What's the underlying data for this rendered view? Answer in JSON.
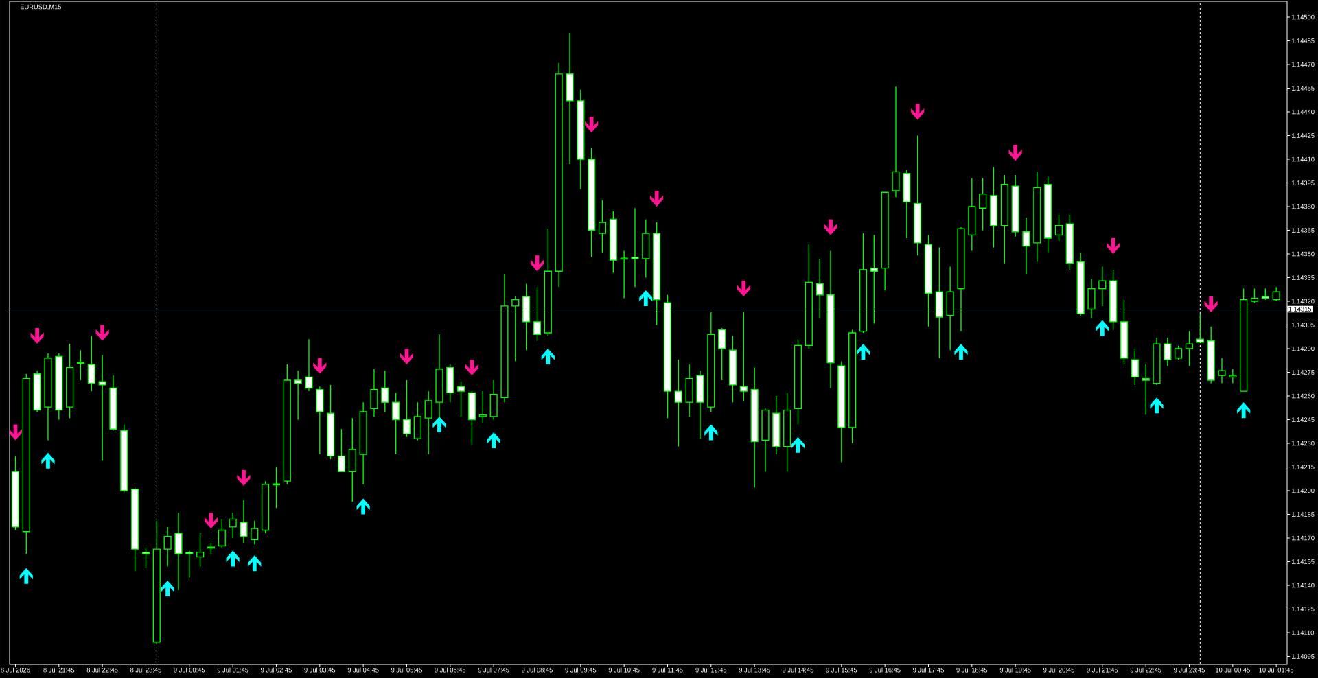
{
  "chart_data": {
    "type": "candlestick",
    "title": "EURUSD,M15",
    "color": "#00ff00",
    "x": [
      "2026-07-08T20:45",
      "2026-07-08T21:00",
      "2026-07-08T21:15",
      "2026-07-08T21:30",
      "2026-07-08T21:45",
      "2026-07-08T22:00",
      "2026-07-08T22:15",
      "2026-07-08T22:30",
      "2026-07-08T22:45",
      "2026-07-08T23:00",
      "2026-07-08T23:15",
      "2026-07-08T23:30",
      "2026-07-08T23:45",
      "2026-07-09T00:00",
      "2026-07-09T00:15",
      "2026-07-09T00:30",
      "2026-07-09T00:45",
      "2026-07-09T01:00",
      "2026-07-09T01:15",
      "2026-07-09T01:30",
      "2026-07-09T01:45",
      "2026-07-09T02:00",
      "2026-07-09T02:15",
      "2026-07-09T02:30",
      "2026-07-09T02:45",
      "2026-07-09T03:00",
      "2026-07-09T03:15",
      "2026-07-09T03:30",
      "2026-07-09T03:45",
      "2026-07-09T04:00",
      "2026-07-09T04:15",
      "2026-07-09T04:30",
      "2026-07-09T04:45",
      "2026-07-09T05:00",
      "2026-07-09T05:15",
      "2026-07-09T05:30",
      "2026-07-09T05:45",
      "2026-07-09T06:00",
      "2026-07-09T06:15",
      "2026-07-09T06:30",
      "2026-07-09T06:45",
      "2026-07-09T07:00",
      "2026-07-09T07:15",
      "2026-07-09T07:30",
      "2026-07-09T07:45",
      "2026-07-09T08:00",
      "2026-07-09T08:15",
      "2026-07-09T08:30",
      "2026-07-09T08:45",
      "2026-07-09T09:00",
      "2026-07-09T09:15",
      "2026-07-09T09:30",
      "2026-07-09T09:45",
      "2026-07-09T10:00",
      "2026-07-09T10:15",
      "2026-07-09T10:30",
      "2026-07-09T10:45",
      "2026-07-09T11:00",
      "2026-07-09T11:15",
      "2026-07-09T11:30",
      "2026-07-09T11:45",
      "2026-07-09T12:00",
      "2026-07-09T12:15",
      "2026-07-09T12:30",
      "2026-07-09T12:45",
      "2026-07-09T13:00",
      "2026-07-09T13:15",
      "2026-07-09T13:30",
      "2026-07-09T13:45",
      "2026-07-09T14:00",
      "2026-07-09T14:15",
      "2026-07-09T14:30",
      "2026-07-09T14:45",
      "2026-07-09T15:00",
      "2026-07-09T15:15",
      "2026-07-09T15:30",
      "2026-07-09T15:45",
      "2026-07-09T16:00",
      "2026-07-09T16:15",
      "2026-07-09T16:30",
      "2026-07-09T16:45",
      "2026-07-09T17:00",
      "2026-07-09T17:15",
      "2026-07-09T17:30",
      "2026-07-09T17:45",
      "2026-07-09T18:00",
      "2026-07-09T18:15",
      "2026-07-09T18:30",
      "2026-07-09T18:45",
      "2026-07-09T19:00",
      "2026-07-09T19:15",
      "2026-07-09T19:30",
      "2026-07-09T19:45",
      "2026-07-09T20:00",
      "2026-07-09T20:15",
      "2026-07-09T20:30",
      "2026-07-09T20:45",
      "2026-07-09T21:00",
      "2026-07-09T21:15",
      "2026-07-09T21:30",
      "2026-07-09T21:45",
      "2026-07-09T22:00",
      "2026-07-09T22:15",
      "2026-07-09T22:30",
      "2026-07-09T22:45",
      "2026-07-09T23:00",
      "2026-07-09T23:15",
      "2026-07-09T23:30",
      "2026-07-09T23:45",
      "2026-07-10T00:00",
      "2026-07-10T00:15",
      "2026-07-10T00:30",
      "2026-07-10T00:45",
      "2026-07-10T01:00",
      "2026-07-10T01:15",
      "2026-07-10T01:30",
      "2026-07-10T01:45"
    ],
    "ohlc": [
      [
        1.14212,
        1.14222,
        1.14175,
        1.14177
      ],
      [
        1.14174,
        1.14274,
        1.1416,
        1.14271
      ],
      [
        1.14274,
        1.14276,
        1.1425,
        1.14251
      ],
      [
        1.14253,
        1.14287,
        1.14232,
        1.14284
      ],
      [
        1.14285,
        1.14287,
        1.14245,
        1.14251
      ],
      [
        1.14253,
        1.14293,
        1.14246,
        1.14278
      ],
      [
        1.14281,
        1.14289,
        1.1427,
        1.14281
      ],
      [
        1.1428,
        1.14298,
        1.14263,
        1.14268
      ],
      [
        1.14269,
        1.14286,
        1.14219,
        1.14267
      ],
      [
        1.14265,
        1.14273,
        1.14238,
        1.14239
      ],
      [
        1.14238,
        1.14242,
        1.14199,
        1.142
      ],
      [
        1.14201,
        1.14202,
        1.14149,
        1.14163
      ],
      [
        1.14161,
        1.14164,
        1.14151,
        1.1416
      ],
      [
        1.14104,
        1.14181,
        1.14103,
        1.14163
      ],
      [
        1.14163,
        1.14177,
        1.14152,
        1.14171
      ],
      [
        1.14173,
        1.14186,
        1.14137,
        1.1416
      ],
      [
        1.14161,
        1.14162,
        1.14145,
        1.1416
      ],
      [
        1.14158,
        1.14173,
        1.14152,
        1.14161
      ],
      [
        1.14164,
        1.14167,
        1.1416,
        1.14164
      ],
      [
        1.14165,
        1.14182,
        1.14164,
        1.14175
      ],
      [
        1.14177,
        1.14186,
        1.1417,
        1.14182
      ],
      [
        1.1418,
        1.14194,
        1.14167,
        1.14171
      ],
      [
        1.14169,
        1.14181,
        1.14166,
        1.14176
      ],
      [
        1.14175,
        1.14206,
        1.14173,
        1.14204
      ],
      [
        1.14204,
        1.14215,
        1.14189,
        1.14204
      ],
      [
        1.14206,
        1.1428,
        1.14204,
        1.1427
      ],
      [
        1.1427,
        1.14276,
        1.14245,
        1.14268
      ],
      [
        1.14272,
        1.14296,
        1.14263,
        1.14265
      ],
      [
        1.14264,
        1.14266,
        1.14223,
        1.1425
      ],
      [
        1.14249,
        1.14267,
        1.1422,
        1.14222
      ],
      [
        1.14222,
        1.14239,
        1.14212,
        1.14212
      ],
      [
        1.14212,
        1.14246,
        1.14193,
        1.14226
      ],
      [
        1.14223,
        1.14256,
        1.14204,
        1.1425
      ],
      [
        1.14252,
        1.14277,
        1.14247,
        1.14264
      ],
      [
        1.14265,
        1.14276,
        1.1425,
        1.14256
      ],
      [
        1.14256,
        1.14262,
        1.14223,
        1.14245
      ],
      [
        1.14245,
        1.1427,
        1.14234,
        1.14236
      ],
      [
        1.14233,
        1.14256,
        1.14232,
        1.14247
      ],
      [
        1.14246,
        1.14263,
        1.14223,
        1.14257
      ],
      [
        1.14256,
        1.14299,
        1.14246,
        1.14277
      ],
      [
        1.14278,
        1.1428,
        1.14256,
        1.14262
      ],
      [
        1.14266,
        1.14269,
        1.14247,
        1.14263
      ],
      [
        1.14262,
        1.14263,
        1.14229,
        1.14245
      ],
      [
        1.14247,
        1.14263,
        1.14243,
        1.14248
      ],
      [
        1.14247,
        1.1427,
        1.14245,
        1.14261
      ],
      [
        1.14259,
        1.14337,
        1.14256,
        1.14317
      ],
      [
        1.14317,
        1.14323,
        1.14282,
        1.14321
      ],
      [
        1.14323,
        1.14331,
        1.14289,
        1.14307
      ],
      [
        1.14307,
        1.14329,
        1.14295,
        1.14299
      ],
      [
        1.143,
        1.14366,
        1.14298,
        1.14339
      ],
      [
        1.14339,
        1.14471,
        1.14329,
        1.14464
      ],
      [
        1.14464,
        1.1449,
        1.14407,
        1.14447
      ],
      [
        1.14447,
        1.14454,
        1.14391,
        1.1441
      ],
      [
        1.1441,
        1.14417,
        1.14348,
        1.14365
      ],
      [
        1.14363,
        1.14384,
        1.14351,
        1.1437
      ],
      [
        1.14372,
        1.14377,
        1.14338,
        1.14346
      ],
      [
        1.14347,
        1.14352,
        1.14322,
        1.14347
      ],
      [
        1.14348,
        1.14379,
        1.14329,
        1.14347
      ],
      [
        1.14347,
        1.14372,
        1.14335,
        1.14363
      ],
      [
        1.14363,
        1.1437,
        1.14305,
        1.14321
      ],
      [
        1.14319,
        1.14324,
        1.14246,
        1.14263
      ],
      [
        1.14263,
        1.14283,
        1.14228,
        1.14256
      ],
      [
        1.14256,
        1.1428,
        1.14247,
        1.14271
      ],
      [
        1.14273,
        1.14276,
        1.14233,
        1.14256
      ],
      [
        1.14253,
        1.14313,
        1.1425,
        1.14299
      ],
      [
        1.14302,
        1.14303,
        1.1427,
        1.1429
      ],
      [
        1.14289,
        1.14298,
        1.14256,
        1.14267
      ],
      [
        1.14266,
        1.14313,
        1.14257,
        1.14263
      ],
      [
        1.14264,
        1.14278,
        1.14202,
        1.14231
      ],
      [
        1.14232,
        1.14252,
        1.14212,
        1.14251
      ],
      [
        1.14249,
        1.1426,
        1.14223,
        1.14228
      ],
      [
        1.14228,
        1.14262,
        1.14212,
        1.14251
      ],
      [
        1.14252,
        1.14296,
        1.14242,
        1.14292
      ],
      [
        1.14292,
        1.14356,
        1.1429,
        1.14332
      ],
      [
        1.14331,
        1.14347,
        1.14309,
        1.14324
      ],
      [
        1.14324,
        1.14352,
        1.14265,
        1.14281
      ],
      [
        1.14279,
        1.14282,
        1.14218,
        1.1424
      ],
      [
        1.1424,
        1.14302,
        1.1423,
        1.143
      ],
      [
        1.14301,
        1.14363,
        1.143,
        1.1434
      ],
      [
        1.14341,
        1.14362,
        1.14306,
        1.14339
      ],
      [
        1.14341,
        1.14389,
        1.14327,
        1.14389
      ],
      [
        1.1439,
        1.14456,
        1.14386,
        1.14402
      ],
      [
        1.14401,
        1.14403,
        1.1436,
        1.14383
      ],
      [
        1.14382,
        1.14425,
        1.14349,
        1.14357
      ],
      [
        1.14356,
        1.14362,
        1.14304,
        1.14325
      ],
      [
        1.14326,
        1.14354,
        1.14284,
        1.1431
      ],
      [
        1.14311,
        1.14342,
        1.14289,
        1.14326
      ],
      [
        1.14328,
        1.14367,
        1.14301,
        1.14366
      ],
      [
        1.14362,
        1.14398,
        1.14352,
        1.1438
      ],
      [
        1.14379,
        1.14398,
        1.14365,
        1.14388
      ],
      [
        1.14387,
        1.14405,
        1.14354,
        1.14368
      ],
      [
        1.14368,
        1.144,
        1.14344,
        1.14394
      ],
      [
        1.14393,
        1.144,
        1.14361,
        1.14364
      ],
      [
        1.14364,
        1.14373,
        1.14337,
        1.14355
      ],
      [
        1.14357,
        1.14402,
        1.14345,
        1.14392
      ],
      [
        1.14394,
        1.14399,
        1.14351,
        1.1436
      ],
      [
        1.14362,
        1.14375,
        1.14358,
        1.14368
      ],
      [
        1.14369,
        1.14375,
        1.1434,
        1.14344
      ],
      [
        1.14345,
        1.14351,
        1.14311,
        1.14312
      ],
      [
        1.14315,
        1.14334,
        1.14309,
        1.14328
      ],
      [
        1.14328,
        1.14342,
        1.14317,
        1.14333
      ],
      [
        1.14333,
        1.1434,
        1.14302,
        1.14307
      ],
      [
        1.14307,
        1.14321,
        1.1428,
        1.14284
      ],
      [
        1.14283,
        1.1429,
        1.14267,
        1.14272
      ],
      [
        1.14271,
        1.1428,
        1.14248,
        1.1427
      ],
      [
        1.14268,
        1.14297,
        1.14267,
        1.14293
      ],
      [
        1.14293,
        1.14297,
        1.14279,
        1.14283
      ],
      [
        1.14284,
        1.14292,
        1.14283,
        1.1429
      ],
      [
        1.1429,
        1.14301,
        1.14279,
        1.14293
      ],
      [
        1.14296,
        1.14312,
        1.14294,
        1.14294
      ],
      [
        1.14295,
        1.14304,
        1.14268,
        1.1427
      ],
      [
        1.14273,
        1.14284,
        1.14268,
        1.14276
      ],
      [
        1.14272,
        1.14277,
        1.14268,
        1.14273
      ],
      [
        1.14263,
        1.14328,
        1.14263,
        1.14321
      ],
      [
        1.1432,
        1.14328,
        1.14319,
        1.14322
      ],
      [
        1.14323,
        1.14328,
        1.14321,
        1.14322
      ],
      [
        1.14321,
        1.14329,
        1.1432,
        1.14326
      ]
    ],
    "colors": [
      "#ffffff",
      "#000000",
      "#ffffff",
      "#000000",
      "#ffffff",
      "#000000",
      "#000000",
      "#ffffff",
      "#ffffff",
      "#ffffff",
      "#ffffff",
      "#ffffff",
      "#ffffff",
      "#000000",
      "#000000",
      "#ffffff",
      "#ffffff",
      "#000000",
      "#000000",
      "#000000",
      "#000000",
      "#ffffff",
      "#000000",
      "#000000",
      "#000000",
      "#000000",
      "#ffffff",
      "#ffffff",
      "#ffffff",
      "#ffffff",
      "#ffffff",
      "#000000",
      "#000000",
      "#000000",
      "#ffffff",
      "#ffffff",
      "#ffffff",
      "#000000",
      "#000000",
      "#000000",
      "#ffffff",
      "#ffffff",
      "#ffffff",
      "#000000",
      "#000000",
      "#000000",
      "#000000",
      "#ffffff",
      "#ffffff",
      "#000000",
      "#000000",
      "#ffffff",
      "#ffffff",
      "#ffffff",
      "#000000",
      "#ffffff",
      "#000000",
      "#ffffff",
      "#000000",
      "#ffffff",
      "#ffffff",
      "#ffffff",
      "#000000",
      "#ffffff",
      "#000000",
      "#ffffff",
      "#ffffff",
      "#ffffff",
      "#ffffff",
      "#000000",
      "#ffffff",
      "#000000",
      "#000000",
      "#000000",
      "#ffffff",
      "#ffffff",
      "#ffffff",
      "#000000",
      "#000000",
      "#ffffff",
      "#000000",
      "#000000",
      "#ffffff",
      "#ffffff",
      "#ffffff",
      "#ffffff",
      "#000000",
      "#000000",
      "#000000",
      "#000000",
      "#ffffff",
      "#000000",
      "#ffffff",
      "#ffffff",
      "#000000",
      "#ffffff",
      "#000000",
      "#ffffff",
      "#ffffff",
      "#000000",
      "#000000",
      "#ffffff",
      "#ffffff",
      "#ffffff",
      "#ffffff",
      "#000000",
      "#ffffff",
      "#000000",
      "#000000",
      "#ffffff",
      "#ffffff",
      "#000000",
      "#000000",
      "#000000",
      "#000000",
      "#ffffff",
      "#000000"
    ],
    "series": [
      {
        "type": "scatter",
        "color": "#00ffff",
        "marker": "triangle",
        "x": [
          "2026-07-08T21:00",
          "2026-07-08T21:30",
          "2026-07-09T00:15",
          "2026-07-09T01:45",
          "2026-07-09T02:15",
          "2026-07-09T04:45",
          "2026-07-09T06:30",
          "2026-07-09T07:45",
          "2026-07-09T09:00",
          "2026-07-09T11:15",
          "2026-07-09T12:45",
          "2026-07-09T14:45",
          "2026-07-09T16:15",
          "2026-07-09T18:30",
          "2026-07-09T21:45",
          "2026-07-09T23:00",
          "2026-07-10T01:00"
        ],
        "values": [
          1.14146,
          1.14219,
          1.14138,
          1.14157,
          1.14154,
          1.1419,
          1.14242,
          1.14232,
          1.14285,
          1.14322,
          1.14237,
          1.14229,
          1.14288,
          1.14288,
          1.14303,
          1.14254,
          1.14251
        ]
      },
      {
        "type": "scatter",
        "color": "#ff1493",
        "marker": "triangle",
        "x": [
          "2026-07-08T20:45",
          "2026-07-08T21:15",
          "2026-07-08T22:45",
          "2026-07-09T01:15",
          "2026-07-09T02:00",
          "2026-07-09T03:45",
          "2026-07-09T05:45",
          "2026-07-09T07:15",
          "2026-07-09T08:45",
          "2026-07-09T10:00",
          "2026-07-09T11:30",
          "2026-07-09T13:30",
          "2026-07-09T15:30",
          "2026-07-09T17:30",
          "2026-07-09T19:45",
          "2026-07-09T22:00",
          "2026-07-10T00:15"
        ],
        "values": [
          1.14237,
          1.14298,
          1.143,
          1.14181,
          1.14208,
          1.14279,
          1.14285,
          1.14278,
          1.14344,
          1.14432,
          1.14385,
          1.14328,
          1.14367,
          1.1444,
          1.14414,
          1.14355,
          1.14318
        ]
      }
    ],
    "xlim": [
      "2026-07-08T20:37",
      "2026-07-10T02:00"
    ],
    "ylim": [
      1.1409,
      1.1451
    ],
    "xticks": [
      {
        "value": "2026-07-08T20:45",
        "label": "8 Jul 2026"
      },
      {
        "value": "2026-07-08T21:45",
        "label": "8 Jul 21:45"
      },
      {
        "value": "2026-07-08T22:45",
        "label": "8 Jul 22:45"
      },
      {
        "value": "2026-07-08T23:45",
        "label": "8 Jul 23:45"
      },
      {
        "value": "2026-07-09T00:45",
        "label": "9 Jul 00:45"
      },
      {
        "value": "2026-07-09T01:45",
        "label": "9 Jul 01:45"
      },
      {
        "value": "2026-07-09T02:45",
        "label": "9 Jul 02:45"
      },
      {
        "value": "2026-07-09T03:45",
        "label": "9 Jul 03:45"
      },
      {
        "value": "2026-07-09T04:45",
        "label": "9 Jul 04:45"
      },
      {
        "value": "2026-07-09T05:45",
        "label": "9 Jul 05:45"
      },
      {
        "value": "2026-07-09T06:45",
        "label": "9 Jul 06:45"
      },
      {
        "value": "2026-07-09T07:45",
        "label": "9 Jul 07:45"
      },
      {
        "value": "2026-07-09T08:45",
        "label": "9 Jul 08:45"
      },
      {
        "value": "2026-07-09T09:45",
        "label": "9 Jul 09:45"
      },
      {
        "value": "2026-07-09T10:45",
        "label": "9 Jul 10:45"
      },
      {
        "value": "2026-07-09T11:45",
        "label": "9 Jul 11:45"
      },
      {
        "value": "2026-07-09T12:45",
        "label": "9 Jul 12:45"
      },
      {
        "value": "2026-07-09T13:45",
        "label": "9 Jul 13:45"
      },
      {
        "value": "2026-07-09T14:45",
        "label": "9 Jul 14:45"
      },
      {
        "value": "2026-07-09T15:45",
        "label": "9 Jul 15:45"
      },
      {
        "value": "2026-07-09T16:45",
        "label": "9 Jul 16:45"
      },
      {
        "value": "2026-07-09T17:45",
        "label": "9 Jul 17:45"
      },
      {
        "value": "2026-07-09T18:45",
        "label": "9 Jul 18:45"
      },
      {
        "value": "2026-07-09T19:45",
        "label": "9 Jul 19:45"
      },
      {
        "value": "2026-07-09T20:45",
        "label": "9 Jul 20:45"
      },
      {
        "value": "2026-07-09T21:45",
        "label": "9 Jul 21:45"
      },
      {
        "value": "2026-07-09T22:45",
        "label": "9 Jul 22:45"
      },
      {
        "value": "2026-07-09T23:45",
        "label": "9 Jul 23:45"
      },
      {
        "value": "2026-07-10T00:45",
        "label": "10 Jul 00:45"
      },
      {
        "value": "2026-07-10T01:45",
        "label": "10 Jul 01:45"
      }
    ],
    "yticks": [
      {
        "value": 1.14095,
        "label": "1.14095"
      },
      {
        "value": 1.1411,
        "label": "1.14110"
      },
      {
        "value": 1.14125,
        "label": "1.14125"
      },
      {
        "value": 1.1414,
        "label": "1.14140"
      },
      {
        "value": 1.14155,
        "label": "1.14155"
      },
      {
        "value": 1.1417,
        "label": "1.14170"
      },
      {
        "value": 1.14185,
        "label": "1.14185"
      },
      {
        "value": 1.142,
        "label": "1.14200"
      },
      {
        "value": 1.14215,
        "label": "1.14215"
      },
      {
        "value": 1.1423,
        "label": "1.14230"
      },
      {
        "value": 1.14245,
        "label": "1.14245"
      },
      {
        "value": 1.1426,
        "label": "1.14260"
      },
      {
        "value": 1.14275,
        "label": "1.14275"
      },
      {
        "value": 1.1429,
        "label": "1.14290"
      },
      {
        "value": 1.14305,
        "label": "1.14305"
      },
      {
        "value": 1.1432,
        "label": "1.14320"
      },
      {
        "value": 1.14335,
        "label": "1.14335"
      },
      {
        "value": 1.1435,
        "label": "1.14350"
      },
      {
        "value": 1.14365,
        "label": "1.14365"
      },
      {
        "value": 1.1438,
        "label": "1.14380"
      },
      {
        "value": 1.14395,
        "label": "1.14395"
      },
      {
        "value": 1.1441,
        "label": "1.14410"
      },
      {
        "value": 1.14425,
        "label": "1.14425"
      },
      {
        "value": 1.1444,
        "label": "1.14440"
      },
      {
        "value": 1.14455,
        "label": "1.14455"
      },
      {
        "value": 1.1447,
        "label": "1.14470"
      },
      {
        "value": 1.14485,
        "label": "1.14485"
      },
      {
        "value": 1.145,
        "label": "1.14500"
      }
    ],
    "ref_lines": [
      {
        "axis": "y",
        "value": 1.14315,
        "label": "1.14315",
        "color": "#8fa0b0"
      },
      {
        "axis": "x",
        "value": "2026-07-09T00:00",
        "color": "#ffffff",
        "line_style": "dotted"
      },
      {
        "axis": "x",
        "value": "2026-07-10T00:00",
        "color": "#ffffff",
        "line_style": "dotted"
      }
    ]
  }
}
